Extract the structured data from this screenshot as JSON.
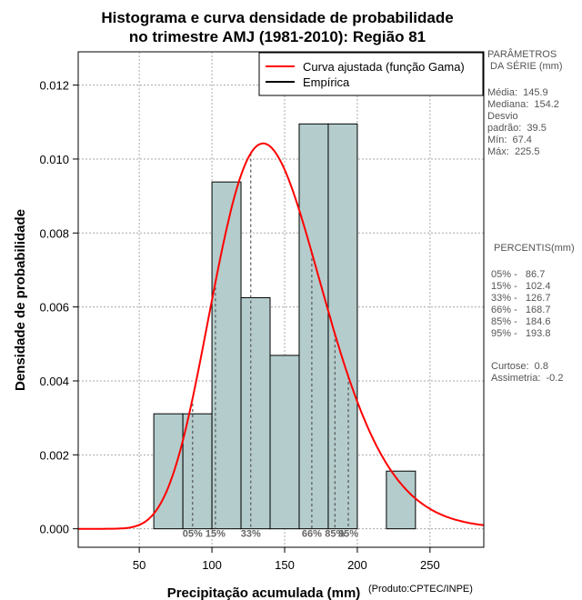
{
  "chart_data": {
    "type": "histogram",
    "title_line1": "Histograma e curva densidade de probabilidade",
    "title_line2": "no trimestre AMJ (1981-2010): Região 81",
    "xlabel": "Precipitação acumulada (mm)",
    "ylabel": "Densidade de probabilidade",
    "credit": "(Produto:CPTEC/INPE)",
    "xlim": [
      8,
      287
    ],
    "ylim": [
      -0.0005,
      0.0129
    ],
    "x_ticks": [
      50,
      100,
      150,
      200,
      250
    ],
    "y_ticks": [
      0.0,
      0.002,
      0.004,
      0.006,
      0.008,
      0.01,
      0.012
    ],
    "y_tick_labels": [
      "0.000",
      "0.002",
      "0.004",
      "0.006",
      "0.008",
      "0.010",
      "0.012"
    ],
    "bins": [
      {
        "x0": 60,
        "x1": 80,
        "density": 0.00311
      },
      {
        "x0": 80,
        "x1": 100,
        "density": 0.00311
      },
      {
        "x0": 100,
        "x1": 120,
        "density": 0.00938
      },
      {
        "x0": 120,
        "x1": 140,
        "density": 0.00625
      },
      {
        "x0": 140,
        "x1": 160,
        "density": 0.00469
      },
      {
        "x0": 160,
        "x1": 180,
        "density": 0.01095
      },
      {
        "x0": 180,
        "x1": 200,
        "density": 0.01095
      },
      {
        "x0": 220,
        "x1": 240,
        "density": 0.00156
      }
    ],
    "gamma_curve": {
      "name": "Curva ajustada (função Gama)",
      "color": "#ff0000",
      "mean": 145.9,
      "sd": 39.5
    },
    "empirical": {
      "name": "Empírica",
      "color": "#000000"
    },
    "bar_color": "#b4cccc",
    "percentile_markers": [
      {
        "label": "05%",
        "x": 86.7
      },
      {
        "label": "15%",
        "x": 102.4
      },
      {
        "label": "33%",
        "x": 126.7
      },
      {
        "label": "66%",
        "x": 168.7
      },
      {
        "label": "85%",
        "x": 184.6
      },
      {
        "label": "95%",
        "x": 193.8
      }
    ]
  },
  "side_panel": {
    "params_title": "PARÂMETROS\n DA SÉRIE (mm)",
    "params": "Média:  145.9\nMediana:  154.2\nDesvio\npadrão:  39.5\nMín:  67.4\nMáx:  225.5",
    "pct_title": "PERCENTIS(mm)",
    "pct": "05% -   86.7\n15% -   102.4\n33% -   126.7\n66% -   168.7\n85% -   184.6\n95% -   193.8",
    "shape": "Curtose:  0.8\nAssimetria:  -0.2"
  }
}
